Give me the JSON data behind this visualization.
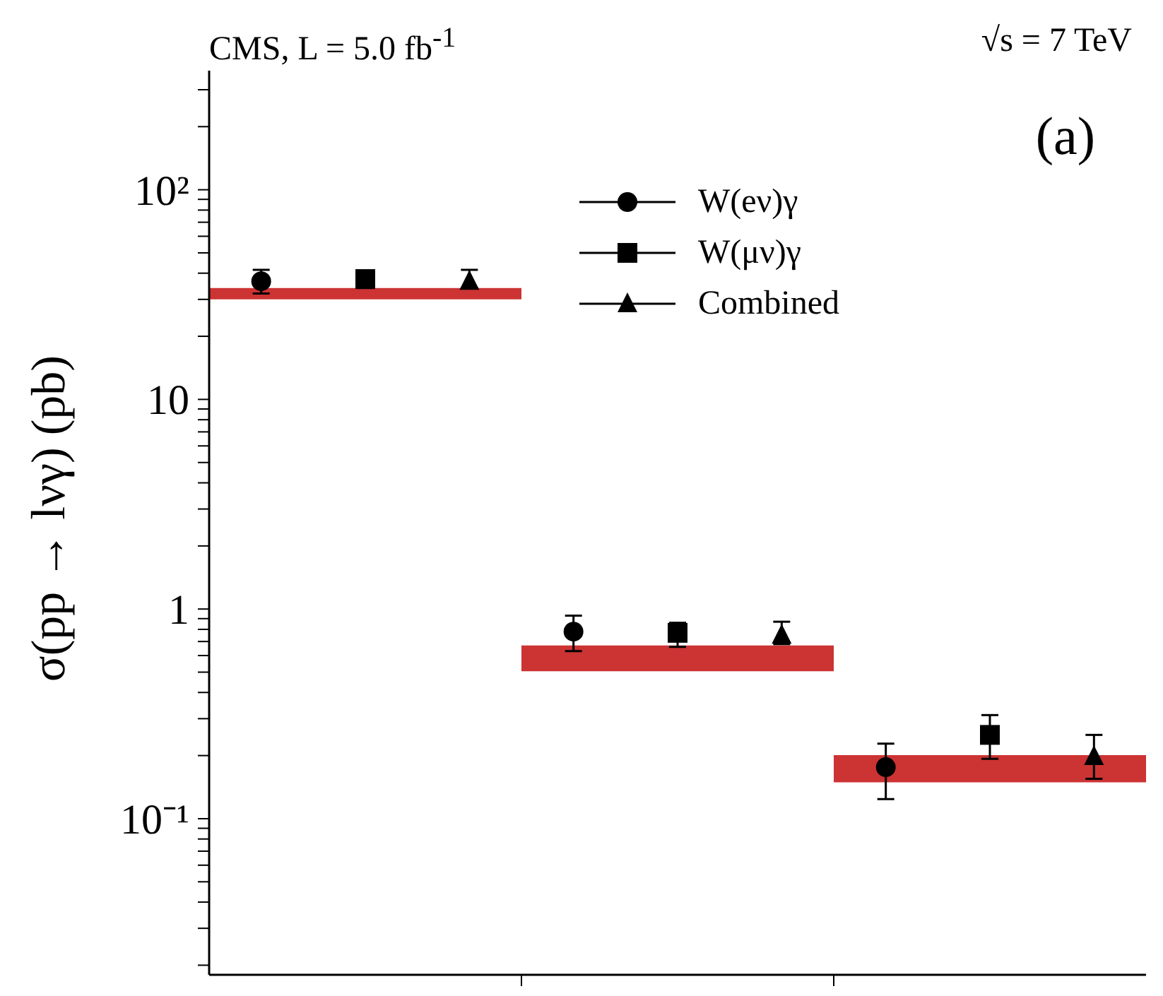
{
  "chart_data": {
    "type": "scatter",
    "title": "CMS, L = 5.0 fb$^{-1}$",
    "subtitle": "√s = 7 TeV",
    "ylabel": "σ(pp → lνγ) (pb)",
    "annotations": [
      "(a)"
    ],
    "categories": [
      null,
      null,
      null
    ],
    "ylim": [
      0.018,
      370
    ],
    "log": true,
    "tick_labels": "y",
    "legend": "top right",
    "yticks": [
      {
        "value": 0.02,
        "label": null
      },
      {
        "value": 0.03,
        "label": null
      },
      {
        "value": 0.04,
        "label": null
      },
      {
        "value": 0.05,
        "label": null
      },
      {
        "value": 0.06,
        "label": null
      },
      {
        "value": 0.07,
        "label": null
      },
      {
        "value": 0.08,
        "label": null
      },
      {
        "value": 0.09,
        "label": null
      },
      {
        "value": 0.1,
        "label": "10⁻¹"
      },
      {
        "value": 0.2,
        "label": null
      },
      {
        "value": 0.3,
        "label": null
      },
      {
        "value": 0.4,
        "label": null
      },
      {
        "value": 0.5,
        "label": null
      },
      {
        "value": 0.6,
        "label": null
      },
      {
        "value": 0.7,
        "label": null
      },
      {
        "value": 0.8,
        "label": null
      },
      {
        "value": 0.9,
        "label": null
      },
      1,
      {
        "value": 2,
        "label": null
      },
      {
        "value": 3,
        "label": null
      },
      {
        "value": 4,
        "label": null
      },
      {
        "value": 5,
        "label": null
      },
      {
        "value": 6,
        "label": null
      },
      {
        "value": 7,
        "label": null
      },
      {
        "value": 8,
        "label": null
      },
      {
        "value": 9,
        "label": null
      },
      10,
      {
        "value": 20,
        "label": null
      },
      {
        "value": 30,
        "label": null
      },
      {
        "value": 40,
        "label": null
      },
      {
        "value": 50,
        "label": null
      },
      {
        "value": 60,
        "label": null
      },
      {
        "value": 70,
        "label": null
      },
      {
        "value": 80,
        "label": null
      },
      {
        "value": 90,
        "label": null
      },
      {
        "value": 100,
        "label": "10²"
      },
      {
        "value": 200,
        "label": null
      },
      {
        "value": 300,
        "label": null
      }
    ],
    "series": [
      {
        "type": "bar",
        "color": "#cc3333",
        "base": [
          30.0,
          0.505,
          0.149
        ],
        "values": [
          4.0,
          0.165,
          0.052
        ]
      },
      {
        "name": "W(eν)γ",
        "marker": "circle",
        "color": "#000000",
        "values": [
          36.6,
          0.78,
          0.176
        ],
        "errors": [
          [
            32,
            41.5
          ],
          [
            0.63,
            0.93
          ],
          [
            0.124,
            0.228
          ]
        ]
      },
      {
        "name": "W(μν)γ",
        "marker": "square",
        "color": "#000000",
        "values": [
          37.5,
          0.77,
          0.251
        ],
        "errors": [
          [
            34,
            40
          ],
          [
            0.66,
            0.86
          ],
          [
            0.193,
            0.312
          ]
        ]
      },
      {
        "name": "Combined",
        "marker": "triangle",
        "color": "#000000",
        "values": [
          36.6,
          0.75,
          0.198
        ],
        "errors": [
          [
            34,
            41.5
          ],
          [
            0.68,
            0.87
          ],
          [
            0.155,
            0.251
          ]
        ]
      }
    ]
  }
}
